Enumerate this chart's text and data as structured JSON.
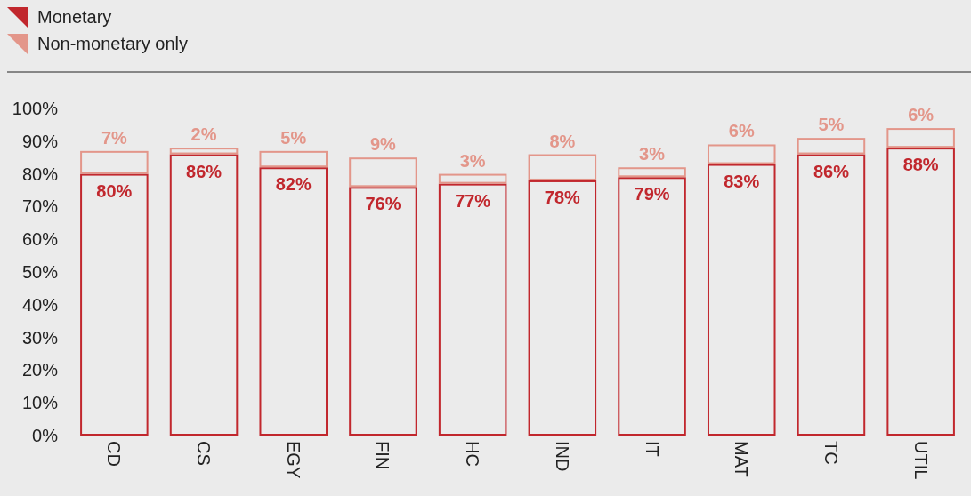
{
  "chart_data": {
    "type": "bar",
    "stacked": true,
    "categories": [
      "CD",
      "CS",
      "EGY",
      "FIN",
      "HC",
      "IND",
      "IT",
      "MAT",
      "TC",
      "UTIL"
    ],
    "series": [
      {
        "name": "Monetary",
        "color": "#c1272d",
        "values": [
          80,
          86,
          82,
          76,
          77,
          78,
          79,
          83,
          86,
          88
        ],
        "value_labels": [
          "80%",
          "86%",
          "82%",
          "76%",
          "77%",
          "78%",
          "79%",
          "83%",
          "86%",
          "88%"
        ]
      },
      {
        "name": "Non-monetary only",
        "color": "#e3968a",
        "values": [
          7,
          2,
          5,
          9,
          3,
          8,
          3,
          6,
          5,
          6
        ],
        "value_labels": [
          "7%",
          "2%",
          "5%",
          "9%",
          "3%",
          "8%",
          "3%",
          "6%",
          "5%",
          "6%"
        ]
      }
    ],
    "ylim": [
      0,
      100
    ],
    "yticks": [
      {
        "value": 0,
        "label": "0%"
      },
      {
        "value": 10,
        "label": "10%"
      },
      {
        "value": 20,
        "label": "20%"
      },
      {
        "value": 30,
        "label": "30%"
      },
      {
        "value": 40,
        "label": "40%"
      },
      {
        "value": 50,
        "label": "50%"
      },
      {
        "value": 60,
        "label": "60%"
      },
      {
        "value": 70,
        "label": "70%"
      },
      {
        "value": 80,
        "label": "80%"
      },
      {
        "value": 90,
        "label": "90%"
      },
      {
        "value": 100,
        "label": "100%"
      }
    ],
    "legend": "top left",
    "grid": false
  }
}
